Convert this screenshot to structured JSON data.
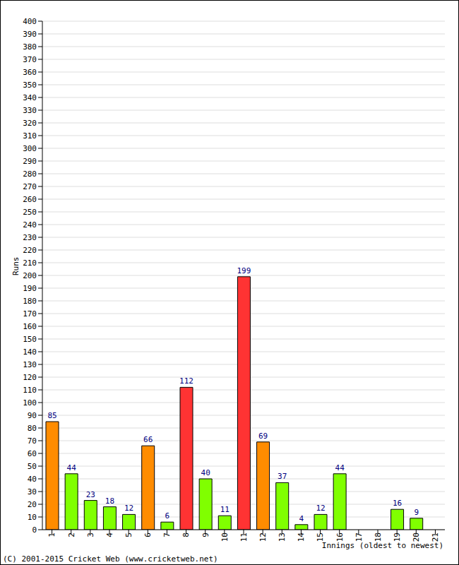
{
  "chart_data": {
    "type": "bar",
    "x_label": "Innings (oldest to newest)",
    "y_label": "Runs",
    "footer": "(C) 2001-2015 Cricket Web (www.cricketweb.net)",
    "categories": [
      "1",
      "2",
      "3",
      "4",
      "5",
      "6",
      "7",
      "8",
      "9",
      "10",
      "11",
      "12",
      "13",
      "14",
      "15",
      "16",
      "17",
      "18",
      "19",
      "20",
      "21"
    ],
    "values": [
      85,
      44,
      23,
      18,
      12,
      66,
      6,
      112,
      40,
      11,
      199,
      69,
      37,
      4,
      12,
      44,
      0,
      0,
      16,
      9,
      0
    ],
    "colors": [
      "#ff8c00",
      "#80ff00",
      "#80ff00",
      "#80ff00",
      "#80ff00",
      "#ff8c00",
      "#80ff00",
      "#ff3333",
      "#80ff00",
      "#80ff00",
      "#ff3333",
      "#ff8c00",
      "#80ff00",
      "#80ff00",
      "#80ff00",
      "#80ff00",
      "#80ff00",
      "#80ff00",
      "#80ff00",
      "#80ff00",
      "#80ff00"
    ],
    "ylim": [
      0,
      400
    ],
    "yticks": [
      0,
      10,
      20,
      30,
      40,
      50,
      60,
      70,
      80,
      90,
      100,
      110,
      120,
      130,
      140,
      150,
      160,
      170,
      180,
      190,
      200,
      210,
      220,
      230,
      240,
      250,
      260,
      270,
      280,
      290,
      300,
      310,
      320,
      330,
      340,
      350,
      360,
      370,
      380,
      390,
      400
    ],
    "grid": true,
    "data_labels": true
  }
}
